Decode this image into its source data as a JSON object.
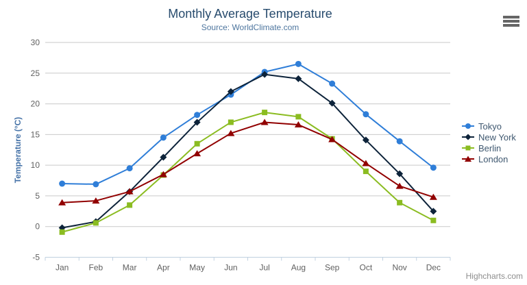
{
  "header": {
    "title": "Monthly Average Temperature",
    "subtitle": "Source: WorldClimate.com"
  },
  "credits_label": "Highcharts.com",
  "export_menu_icon": "hamburger-icon",
  "colors": {
    "title_text": "#274b6d",
    "subtitle_text": "#4d759e",
    "axis_label_text": "#606060",
    "y_axis_title_text": "#4572a7",
    "legend_text": "#3e576f",
    "grid_line": "#c9c9c9",
    "axis_line": "#c0d0e0",
    "credits_text": "#8e8e8e",
    "menu_icon": "#666666"
  },
  "chart_data": {
    "type": "line",
    "title": "Monthly Average Temperature",
    "subtitle": "Source: WorldClimate.com",
    "categories": [
      "Jan",
      "Feb",
      "Mar",
      "Apr",
      "May",
      "Jun",
      "Jul",
      "Aug",
      "Sep",
      "Oct",
      "Nov",
      "Dec"
    ],
    "series": [
      {
        "name": "Tokyo",
        "color": "#2f7ed8",
        "marker": "circle",
        "values": [
          7.0,
          6.9,
          9.5,
          14.5,
          18.2,
          21.5,
          25.2,
          26.5,
          23.3,
          18.3,
          13.9,
          9.6
        ]
      },
      {
        "name": "New York",
        "color": "#0d233a",
        "marker": "diamond",
        "values": [
          -0.2,
          0.8,
          5.7,
          11.3,
          17.0,
          22.0,
          24.8,
          24.1,
          20.1,
          14.1,
          8.6,
          2.5
        ]
      },
      {
        "name": "Berlin",
        "color": "#8bbc21",
        "marker": "square",
        "values": [
          -0.9,
          0.6,
          3.5,
          8.4,
          13.5,
          17.0,
          18.6,
          17.9,
          14.3,
          9.0,
          3.9,
          1.0
        ]
      },
      {
        "name": "London",
        "color": "#910000",
        "marker": "triangle",
        "values": [
          3.9,
          4.2,
          5.7,
          8.5,
          11.9,
          15.2,
          17.0,
          16.6,
          14.2,
          10.3,
          6.6,
          4.8
        ]
      }
    ],
    "xlabel": "",
    "ylabel": "Temperature (°C)",
    "ylim": [
      -5,
      30
    ],
    "ytick_interval": 5,
    "grid": true,
    "legend_position": "right"
  }
}
